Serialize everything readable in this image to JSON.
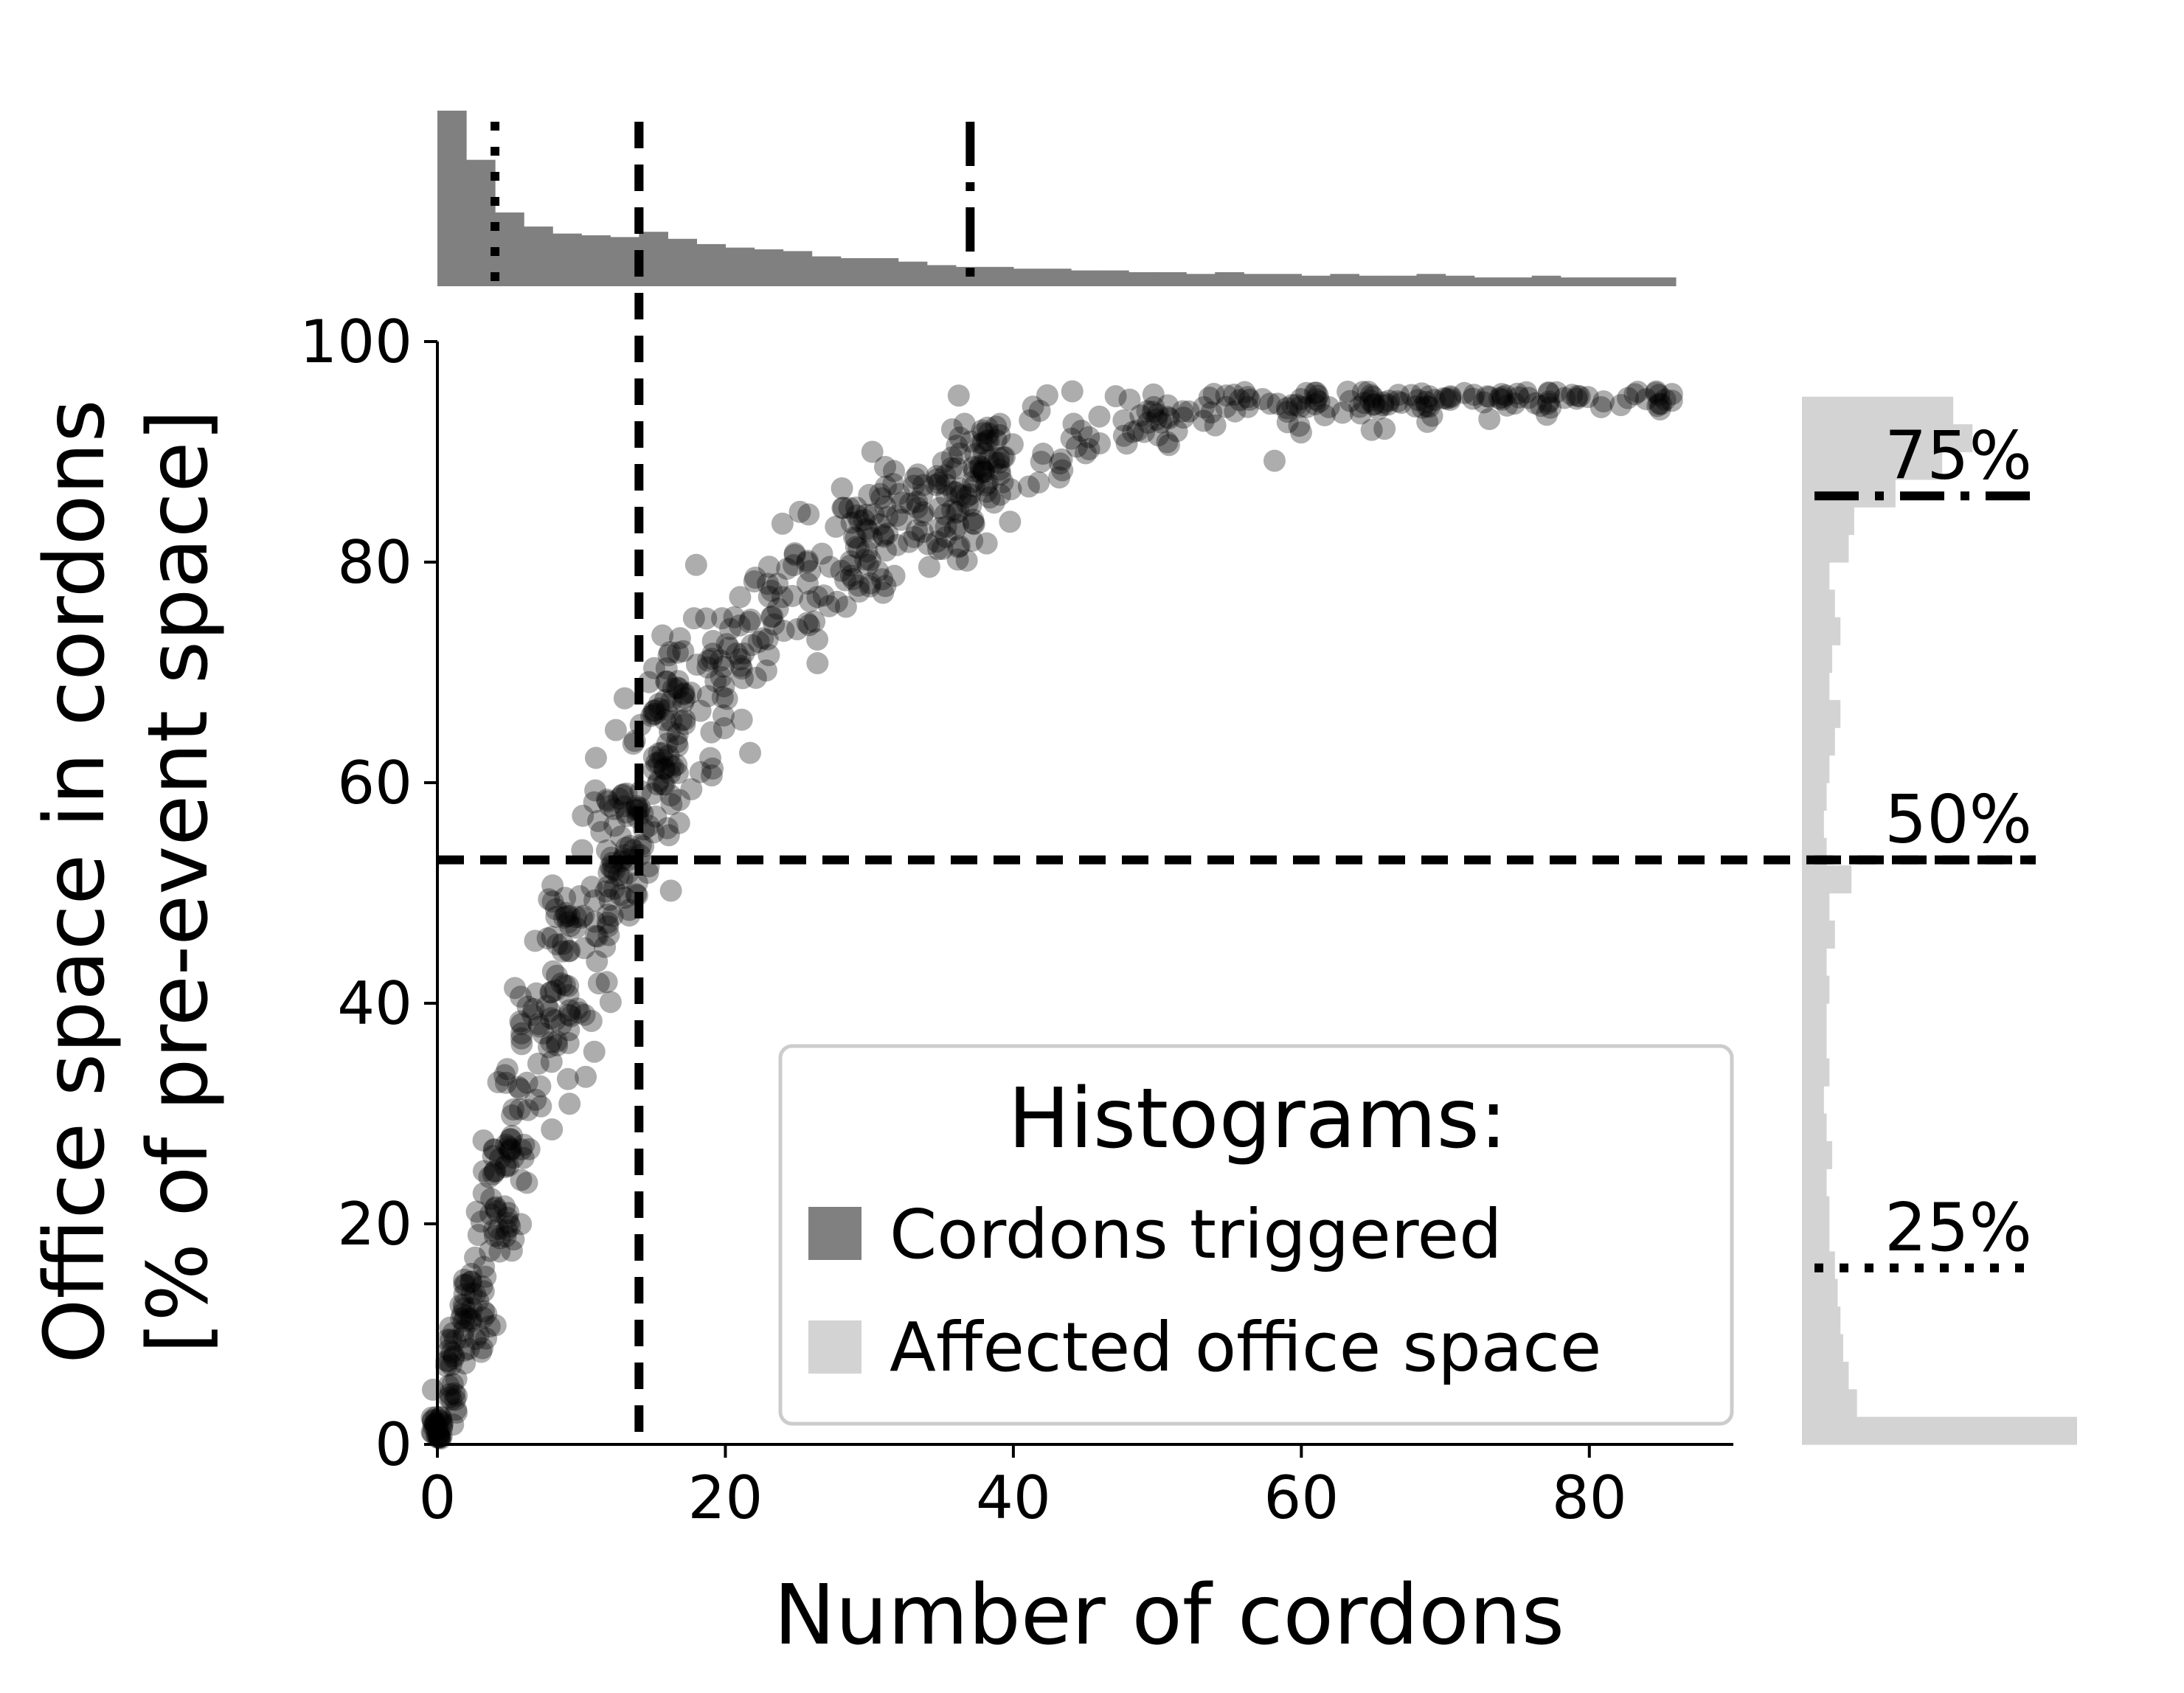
{
  "chart_data": {
    "type": "scatter",
    "xlabel": "Number of cordons",
    "ylabel_line1": "Office space in cordons",
    "ylabel_line2": "[% of pre-event space]",
    "xlim": [
      0,
      90
    ],
    "ylim": [
      0,
      100
    ],
    "x_ticks": [
      "0",
      "20",
      "40",
      "60",
      "80"
    ],
    "y_ticks": [
      "0",
      "20",
      "40",
      "60",
      "80",
      "100"
    ],
    "x_tick_values": [
      0,
      20,
      40,
      60,
      80
    ],
    "y_tick_values": [
      0,
      20,
      40,
      60,
      80,
      100
    ],
    "colors": {
      "points": "#000000",
      "hist_cordons": "#808080",
      "hist_space": "#d3d3d3",
      "lines": "#000000"
    },
    "point_opacity": 0.32,
    "legend": {
      "title": "Histograms:",
      "placement": "lower-right",
      "entries": [
        "Cordons triggered",
        "Affected office space"
      ]
    },
    "reference_lines": {
      "vertical_x": [
        {
          "x": 4,
          "style": "dotted"
        },
        {
          "x": 14,
          "style": "dashed"
        },
        {
          "x": 37,
          "style": "dashdot"
        }
      ],
      "horizontal_y": [
        {
          "y": 16,
          "style": "dotted",
          "label": "25%"
        },
        {
          "y": 53,
          "style": "dashed",
          "label": "50%"
        },
        {
          "y": 86,
          "style": "dashdot",
          "label": "75%"
        }
      ],
      "main_vertical_x": 14,
      "main_horizontal_y": 53
    },
    "top_histogram": {
      "label": "Cordons triggered",
      "bins_start": 0,
      "bin_width": 2,
      "relative_heights": [
        1.0,
        0.72,
        0.42,
        0.34,
        0.3,
        0.29,
        0.28,
        0.31,
        0.27,
        0.24,
        0.22,
        0.21,
        0.2,
        0.17,
        0.16,
        0.16,
        0.14,
        0.12,
        0.11,
        0.11,
        0.1,
        0.1,
        0.09,
        0.09,
        0.08,
        0.08,
        0.07,
        0.08,
        0.07,
        0.07,
        0.06,
        0.07,
        0.06,
        0.06,
        0.07,
        0.06,
        0.05,
        0.05,
        0.06,
        0.05,
        0.05,
        0.05,
        0.05
      ]
    },
    "right_histogram": {
      "label": "Affected office space",
      "bins_start": 0,
      "bin_width": 2.5,
      "relative_heights": [
        1.0,
        0.2,
        0.17,
        0.15,
        0.14,
        0.13,
        0.12,
        0.1,
        0.1,
        0.09,
        0.11,
        0.09,
        0.08,
        0.1,
        0.09,
        0.09,
        0.1,
        0.09,
        0.12,
        0.1,
        0.18,
        0.09,
        0.08,
        0.09,
        0.1,
        0.12,
        0.14,
        0.1,
        0.11,
        0.14,
        0.12,
        0.1,
        0.17,
        0.19,
        0.34,
        0.51,
        0.62,
        0.55
      ]
    }
  }
}
